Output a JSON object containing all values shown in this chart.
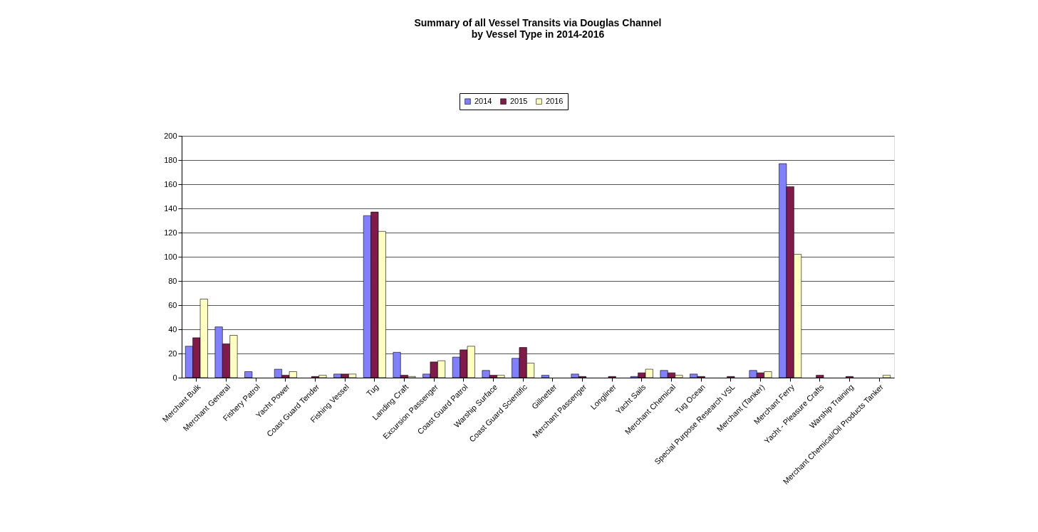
{
  "chart_data": {
    "type": "bar",
    "title": "Summary of all Vessel Transits via Douglas Channel\nby Vessel Type in 2014-2016",
    "categories": [
      "Merchant Bulk",
      "Merchant General",
      "Fishery Patrol",
      "Yacht Power",
      "Coast Guard Tender",
      "Fishing Vessel",
      "Tug",
      "Landing Craft",
      "Excursion Passenger",
      "Coast Guard Patrol",
      "Warship Surface",
      "Coast Guard Scientific",
      "Gillnetter",
      "Merchant Passenger",
      "Longliner",
      "Yacht Sails",
      "Merchant Chemical",
      "Tug Ocean",
      "Special Purpose Research VSL",
      "Merchant (Tanker)",
      "Merchant Ferry",
      "Yacht - Pleasure Crafts",
      "Warship Training",
      "Merchant Chemical/Oil Products Tanker"
    ],
    "series": [
      {
        "name": "2014",
        "color": "#8080ff",
        "values": [
          26,
          42,
          5,
          7,
          0,
          3,
          134,
          21,
          3,
          17,
          6,
          16,
          2,
          3,
          0,
          1,
          6,
          3,
          0,
          6,
          177,
          0,
          0,
          0
        ]
      },
      {
        "name": "2015",
        "color": "#7f1a4a",
        "values": [
          33,
          28,
          0,
          2,
          1,
          3,
          137,
          2,
          13,
          23,
          2,
          25,
          0,
          1,
          1,
          4,
          4,
          1,
          1,
          4,
          158,
          2,
          1,
          0
        ]
      },
      {
        "name": "2016",
        "color": "#ffffc0",
        "values": [
          65,
          35,
          0,
          5,
          2,
          3,
          121,
          1,
          14,
          26,
          2,
          12,
          0,
          0,
          0,
          7,
          2,
          0,
          0,
          5,
          102,
          0,
          0,
          2
        ]
      }
    ],
    "ylim": [
      0,
      200
    ],
    "yticks": [
      0,
      20,
      40,
      60,
      80,
      100,
      120,
      140,
      160,
      180,
      200
    ],
    "grid": "y",
    "legend": "top"
  }
}
